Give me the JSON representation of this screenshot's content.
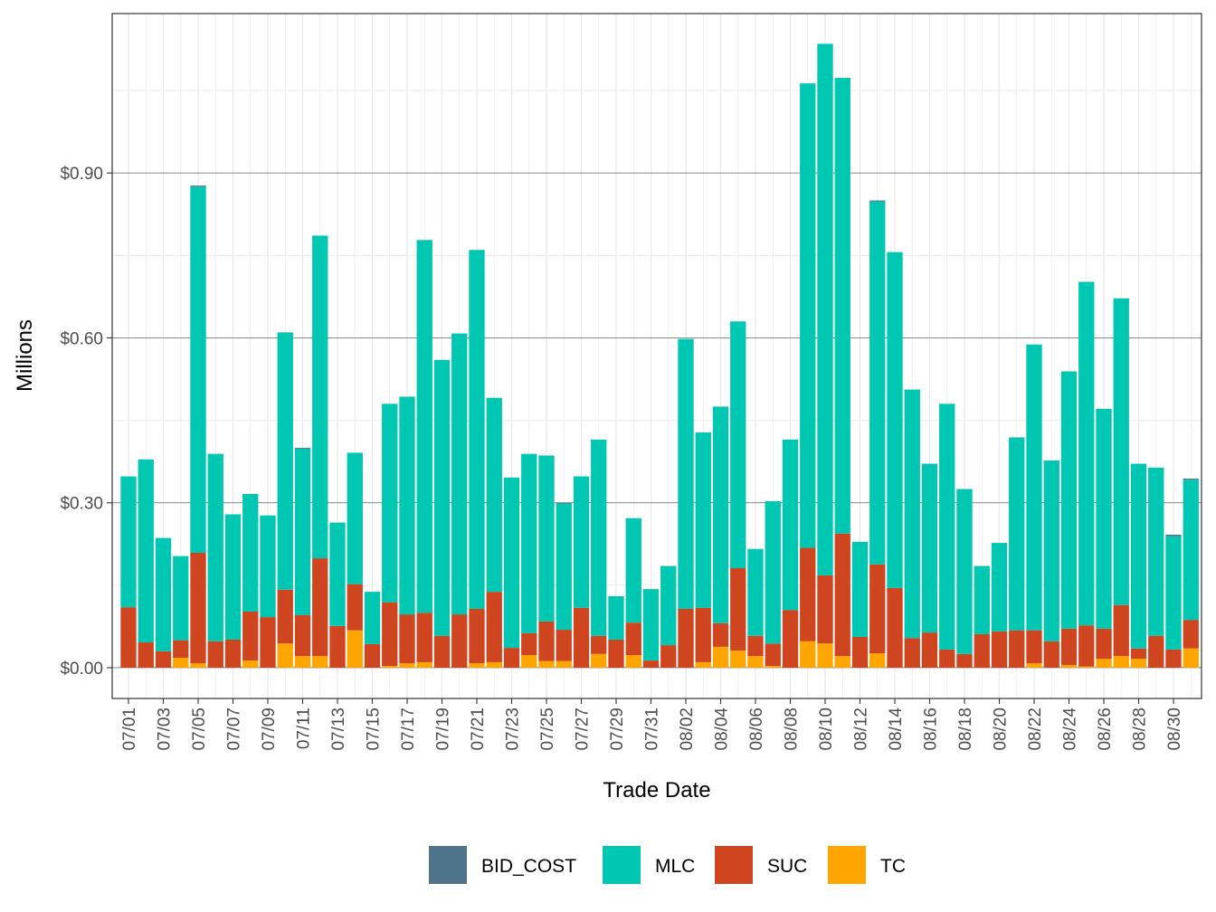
{
  "chart_data": {
    "type": "bar",
    "stacked": true,
    "title": "",
    "xlabel": "Trade Date",
    "ylabel": "Millions",
    "ylim": [
      -0.056,
      1.19
    ],
    "yticks": [
      0,
      0.3,
      0.6,
      0.9
    ],
    "ytick_labels": [
      "$0.00",
      "$0.30",
      "$0.60",
      "$0.90"
    ],
    "grid": true,
    "legend_position": "bottom",
    "categories": [
      "07/01",
      "07/02",
      "07/03",
      "07/04",
      "07/05",
      "07/06",
      "07/07",
      "07/08",
      "07/09",
      "07/10",
      "07/11",
      "07/12",
      "07/13",
      "07/14",
      "07/15",
      "07/16",
      "07/17",
      "07/18",
      "07/19",
      "07/20",
      "07/21",
      "07/22",
      "07/23",
      "07/24",
      "07/25",
      "07/26",
      "07/27",
      "07/28",
      "07/29",
      "07/30",
      "07/31",
      "08/01",
      "08/02",
      "08/03",
      "08/04",
      "08/05",
      "08/06",
      "08/07",
      "08/08",
      "08/09",
      "08/10",
      "08/11",
      "08/12",
      "08/13",
      "08/14",
      "08/15",
      "08/16",
      "08/17",
      "08/18",
      "08/19",
      "08/20",
      "08/21",
      "08/22",
      "08/23",
      "08/24",
      "08/25",
      "08/26",
      "08/27",
      "08/28",
      "08/29",
      "08/30",
      "08/31"
    ],
    "xtick_labels": [
      "07/01",
      "07/03",
      "07/05",
      "07/07",
      "07/09",
      "07/11",
      "07/13",
      "07/15",
      "07/17",
      "07/19",
      "07/21",
      "07/23",
      "07/25",
      "07/27",
      "07/29",
      "07/31",
      "08/02",
      "08/04",
      "08/06",
      "08/08",
      "08/10",
      "08/12",
      "08/14",
      "08/16",
      "08/18",
      "08/20",
      "08/22",
      "08/24",
      "08/26",
      "08/28",
      "08/30"
    ],
    "series": [
      {
        "name": "TC",
        "color": "#FFA500",
        "values": [
          0,
          0,
          0,
          0.018,
          0.008,
          0,
          0,
          0.013,
          0,
          0.044,
          0.021,
          0.021,
          0,
          0.068,
          0,
          0.003,
          0.008,
          0.01,
          0,
          0,
          0.008,
          0.01,
          0,
          0.023,
          0.012,
          0.012,
          0,
          0.025,
          0,
          0.023,
          0,
          0,
          0,
          0.01,
          0.038,
          0.031,
          0.021,
          0.003,
          0,
          0.048,
          0.044,
          0.021,
          0,
          0.026,
          0,
          0,
          0,
          0,
          0,
          0,
          0,
          0,
          0.008,
          0,
          0.005,
          0.002,
          0.016,
          0.021,
          0.016,
          0,
          0,
          0.035
        ]
      },
      {
        "name": "SUC",
        "color": "#CF4520",
        "values": [
          0.11,
          0.046,
          0.03,
          0.032,
          0.201,
          0.048,
          0.051,
          0.089,
          0.092,
          0.098,
          0.075,
          0.178,
          0.076,
          0.084,
          0.043,
          0.116,
          0.089,
          0.09,
          0.058,
          0.097,
          0.099,
          0.128,
          0.036,
          0.04,
          0.072,
          0.057,
          0.109,
          0.033,
          0.051,
          0.059,
          0.013,
          0.041,
          0.107,
          0.099,
          0.043,
          0.15,
          0.037,
          0.041,
          0.105,
          0.17,
          0.124,
          0.223,
          0.056,
          0.162,
          0.145,
          0.054,
          0.064,
          0.033,
          0.025,
          0.061,
          0.066,
          0.068,
          0.06,
          0.048,
          0.066,
          0.075,
          0.055,
          0.093,
          0.019,
          0.058,
          0.033,
          0.052
        ]
      },
      {
        "name": "MLC",
        "color": "#00C7B2",
        "values": [
          0.238,
          0.333,
          0.206,
          0.153,
          0.666,
          0.341,
          0.228,
          0.214,
          0.185,
          0.468,
          0.303,
          0.587,
          0.188,
          0.239,
          0.095,
          0.361,
          0.396,
          0.678,
          0.502,
          0.511,
          0.653,
          0.353,
          0.31,
          0.326,
          0.302,
          0.23,
          0.239,
          0.357,
          0.079,
          0.19,
          0.13,
          0.144,
          0.491,
          0.319,
          0.394,
          0.449,
          0.158,
          0.259,
          0.31,
          0.845,
          0.967,
          0.829,
          0.173,
          0.66,
          0.611,
          0.452,
          0.307,
          0.447,
          0.3,
          0.124,
          0.161,
          0.351,
          0.52,
          0.329,
          0.468,
          0.625,
          0.4,
          0.558,
          0.336,
          0.306,
          0.206,
          0.255
        ]
      },
      {
        "name": "BID_COST",
        "color": "#4F738A",
        "values": [
          0,
          0,
          0,
          0,
          0.002,
          0,
          0,
          0,
          0,
          0,
          0.001,
          0,
          0,
          0,
          0,
          0,
          0,
          0,
          0,
          0,
          0,
          0,
          0,
          0,
          0,
          0.001,
          0,
          0,
          0,
          0,
          0,
          0,
          0,
          0,
          0,
          0,
          0,
          0,
          0,
          0,
          0,
          0,
          0,
          0.002,
          0,
          0,
          0,
          0,
          0,
          0,
          0,
          0,
          0,
          0,
          0,
          0,
          0,
          0,
          0,
          0,
          0.003,
          0.002
        ]
      }
    ],
    "legend": [
      "BID_COST",
      "MLC",
      "SUC",
      "TC"
    ]
  }
}
